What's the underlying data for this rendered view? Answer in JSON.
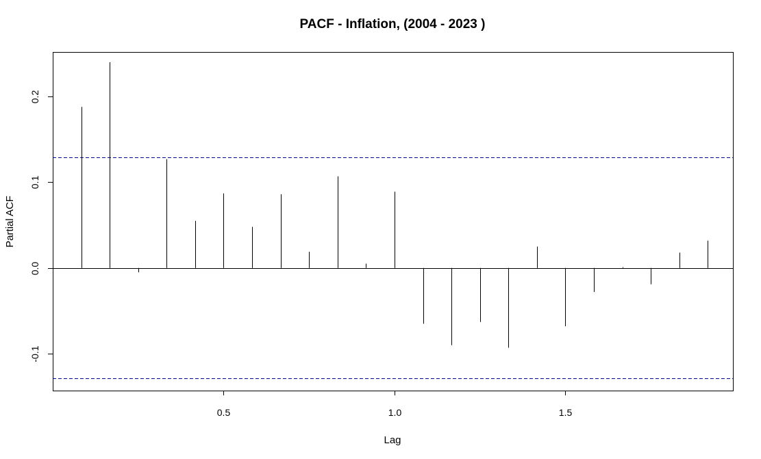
{
  "chart_data": {
    "type": "bar",
    "style": "spike",
    "title": "PACF - Inflation, (2004 - 2023 )",
    "xlabel": "Lag",
    "ylabel": "Partial ACF",
    "xlim": [
      0.0,
      1.99
    ],
    "ylim": [
      -0.143,
      0.252
    ],
    "x_ticks": [
      {
        "value": 0.5,
        "label": "0.5"
      },
      {
        "value": 1.0,
        "label": "1.0"
      },
      {
        "value": 1.5,
        "label": "1.5"
      }
    ],
    "y_ticks": [
      {
        "value": -0.1,
        "label": "-0.1"
      },
      {
        "value": 0.0,
        "label": "0.0"
      },
      {
        "value": 0.1,
        "label": "0.1"
      },
      {
        "value": 0.2,
        "label": "0.2"
      }
    ],
    "confidence_bounds": [
      0.129,
      -0.129
    ],
    "confidence_color": "#00008b",
    "spike_color": "#000000",
    "zero_line": true,
    "grid": false,
    "x": [
      0.0833,
      0.1667,
      0.25,
      0.3333,
      0.4167,
      0.5,
      0.5833,
      0.6667,
      0.75,
      0.8333,
      0.9167,
      1.0,
      1.0833,
      1.1667,
      1.25,
      1.3333,
      1.4167,
      1.5,
      1.5833,
      1.6667,
      1.75,
      1.8333,
      1.9167
    ],
    "values": [
      0.188,
      0.24,
      -0.005,
      0.127,
      0.055,
      0.087,
      0.048,
      0.086,
      0.019,
      0.107,
      0.005,
      0.089,
      -0.065,
      -0.09,
      -0.063,
      -0.093,
      0.025,
      -0.068,
      -0.028,
      0.001,
      -0.019,
      0.018,
      0.032
    ]
  }
}
